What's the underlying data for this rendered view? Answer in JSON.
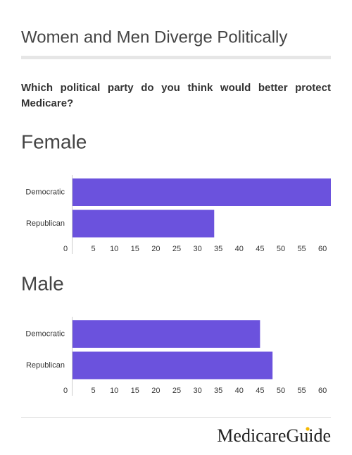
{
  "title": "Women and Men Diverge Politically",
  "question": "Which political party do you think would better protect Medicare?",
  "brand": "MedicareGuide",
  "chart_data": [
    {
      "type": "bar",
      "title": "Female",
      "categories": [
        "Democratic",
        "Republican"
      ],
      "values": [
        62,
        34
      ],
      "color": "#6b52dd",
      "xlim": [
        0,
        62
      ],
      "xticks": [
        0,
        5,
        10,
        15,
        20,
        25,
        30,
        35,
        40,
        45,
        50,
        55,
        60
      ]
    },
    {
      "type": "bar",
      "title": "Male",
      "categories": [
        "Democratic",
        "Republican"
      ],
      "values": [
        45,
        48
      ],
      "color": "#6b52dd",
      "xlim": [
        0,
        62
      ],
      "xticks": [
        0,
        5,
        10,
        15,
        20,
        25,
        30,
        35,
        40,
        45,
        50,
        55,
        60
      ]
    }
  ]
}
